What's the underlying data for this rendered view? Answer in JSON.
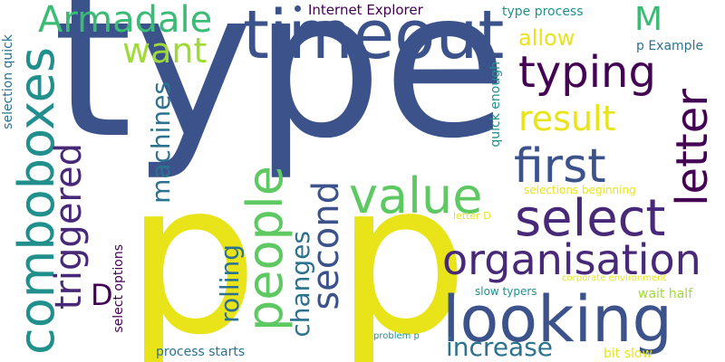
{
  "palette": {
    "navy": "#3b528b",
    "indigo": "#482878",
    "purple": "#440154",
    "teal": "#21908d",
    "blue_teal": "#2c728e",
    "green": "#5ec962",
    "mint": "#3bbb75",
    "lime": "#a0da39",
    "yellow": "#e8e419"
  },
  "words": {
    "type": "type",
    "p1": "p",
    "p2": "p",
    "timeout": "timeout",
    "looking": "looking",
    "select": "select",
    "comboboxes": "comboboxes",
    "people": "people",
    "value": "value",
    "organisation": "organisation",
    "first": "first",
    "typing": "typing",
    "letter": "letter",
    "triggered": "triggered",
    "armadale": "Armadale",
    "second": "second",
    "result": "result",
    "want": "want",
    "machines": "machines",
    "increase": "increase",
    "changes": "changes",
    "rolling": "rolling",
    "m": "M",
    "d": "D",
    "allow": "allow",
    "internet_explorer": "Internet Explorer",
    "type_process": "type process",
    "p_example": "p Example",
    "selection_quick": "selection quick",
    "quick_enough": "quick enough",
    "select_options": "select options",
    "process_starts": "process starts",
    "wait_half": "wait half",
    "bit_slow": "bit slow",
    "slow_typers": "slow typers",
    "selections_beginning": "selections beginning",
    "corporate_environment": "corporate environment",
    "letter_d": "letter D",
    "problem_p": "problem p"
  }
}
